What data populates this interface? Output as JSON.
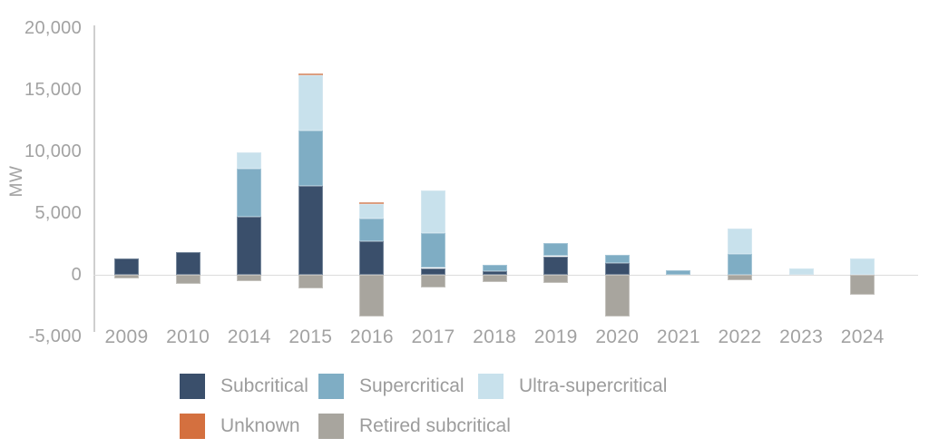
{
  "chart_data": {
    "type": "bar",
    "stacked": true,
    "title": "",
    "xlabel": "",
    "ylabel": "MW",
    "categories": [
      "2009",
      "2010",
      "2014",
      "2015",
      "2016",
      "2017",
      "2018",
      "2019",
      "2020",
      "2021",
      "2022",
      "2023",
      "2024"
    ],
    "series": [
      {
        "name": "Subcritical",
        "color": "#3a4f6b",
        "values": [
          1350,
          1800,
          4700,
          7200,
          2700,
          550,
          300,
          1500,
          950,
          0,
          0,
          0,
          0
        ]
      },
      {
        "name": "Supercritical",
        "color": "#7fadc4",
        "values": [
          0,
          0,
          3900,
          4450,
          1850,
          2850,
          500,
          1050,
          700,
          400,
          1700,
          0,
          0
        ]
      },
      {
        "name": "Ultra-supercritical",
        "color": "#c8e1ec",
        "values": [
          0,
          0,
          1300,
          4450,
          1150,
          3400,
          0,
          0,
          0,
          0,
          2050,
          550,
          1300
        ]
      },
      {
        "name": "Unknown",
        "color": "#d4703f",
        "values": [
          0,
          0,
          0,
          200,
          200,
          0,
          0,
          0,
          0,
          0,
          0,
          0,
          0
        ]
      },
      {
        "name": "Retired subcritical",
        "color": "#a8a59e",
        "values": [
          -300,
          -750,
          -500,
          -1100,
          -3350,
          -1000,
          -550,
          -650,
          -3400,
          0,
          -450,
          0,
          -1600
        ]
      }
    ],
    "stack_order_bottom_to_top": [
      "Subcritical",
      "Supercritical",
      "Ultra-supercritical",
      "Unknown"
    ],
    "negative_series": [
      "Retired subcritical"
    ],
    "y_ticks": [
      "20,000",
      "15,000",
      "10,000",
      "5,000",
      "0",
      "-5,000"
    ],
    "y_tick_values": [
      20000,
      15000,
      10000,
      5000,
      0,
      -5000
    ],
    "ylim": [
      -5000,
      20000
    ],
    "grid": "zero-line-only",
    "legend_position": "bottom",
    "colors": {
      "axis_text": "#a2a2a2",
      "legend_text": "#9c9c9c",
      "zero_line": "#dcdcdc",
      "axis_line": "#cfcfcf",
      "background": "#ffffff"
    }
  }
}
